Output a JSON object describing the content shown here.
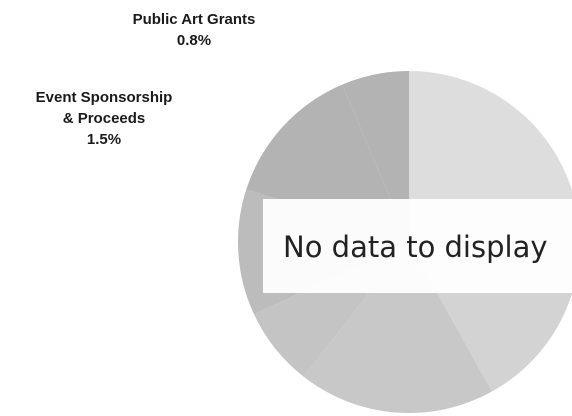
{
  "chart_data": {
    "type": "pie",
    "title": "",
    "slices": [
      {
        "name": "",
        "color": "#dddddd"
      },
      {
        "name": "",
        "color": "#d3d3d3"
      },
      {
        "name": "",
        "color": "#c8c8c8"
      },
      {
        "name": "",
        "color": "#c4c4c4"
      },
      {
        "name": "",
        "color": "#bcbcbc"
      },
      {
        "name": "Event Sponsorship & Proceeds",
        "value": 1.5,
        "display": "1.5%",
        "color": "#b3b3b3"
      },
      {
        "name": "Public Art Grants",
        "value": 0.8,
        "display": "0.8%",
        "color": "#b3b3b3"
      }
    ],
    "labels": [
      {
        "name": "Public Art Grants",
        "pct": "0.8%"
      },
      {
        "name_lines": [
          "Event Sponsorship",
          "& Proceeds"
        ],
        "pct": "1.5%"
      }
    ],
    "legend": "none"
  },
  "overlay": {
    "message": "No data to display"
  }
}
